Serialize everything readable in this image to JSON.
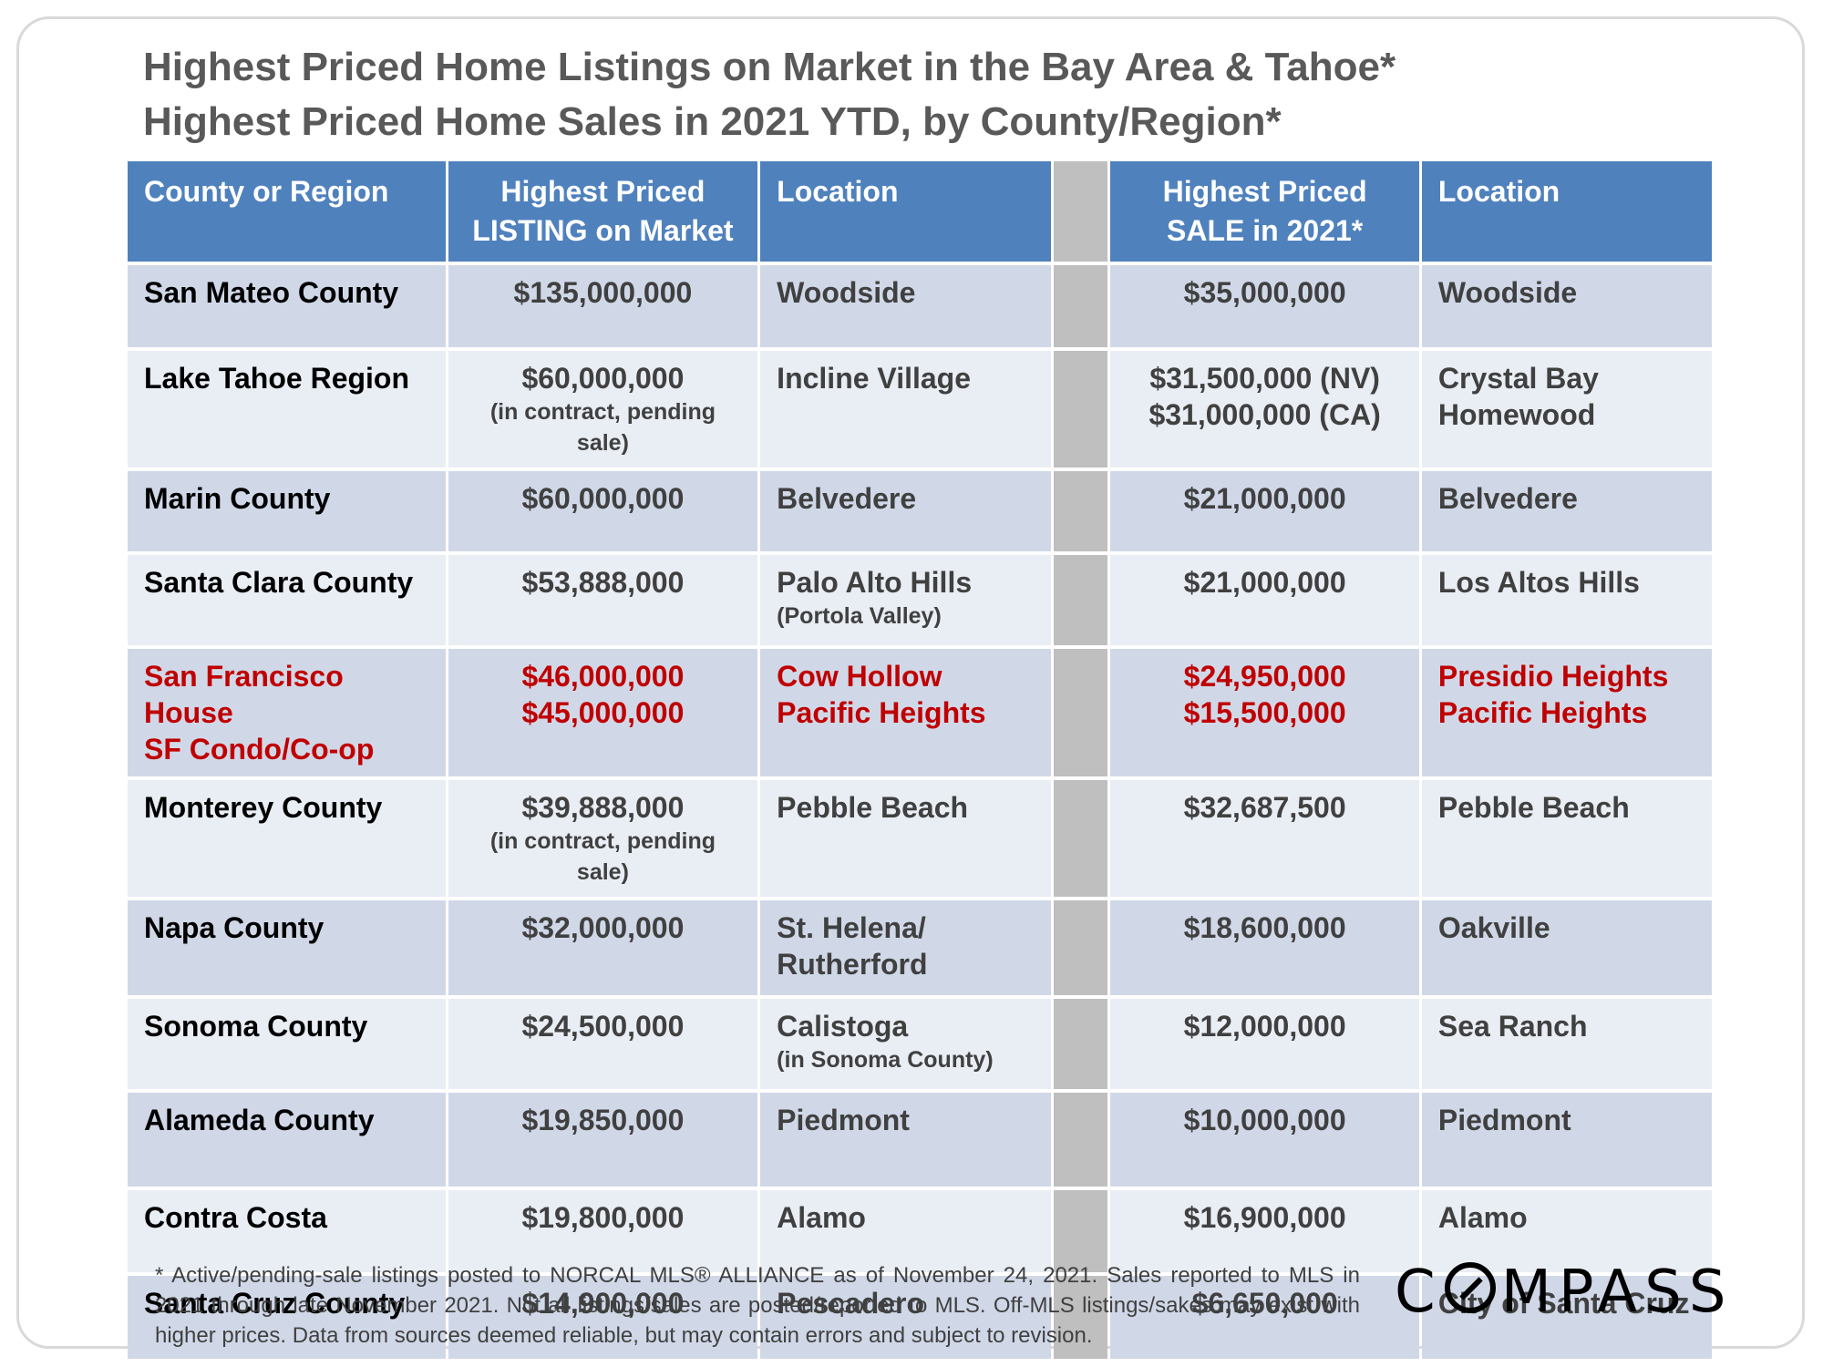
{
  "title": {
    "line1": "Highest Priced Home Listings on Market in the Bay Area & Tahoe*",
    "line2": "Highest Priced Home Sales in 2021 YTD, by County/Region*"
  },
  "chart_data": {
    "type": "table",
    "headers": {
      "region": "County or Region",
      "listing": [
        "Highest Priced",
        "LISTING on Market"
      ],
      "listing_location": "Location",
      "sale": [
        "Highest Priced",
        "SALE in 2021*"
      ],
      "sale_location": "Location"
    },
    "rows": [
      {
        "region": [
          "San Mateo County"
        ],
        "listing": [
          "$135,000,000"
        ],
        "listing_note": "",
        "listing_location": [
          "Woodside"
        ],
        "listing_location_note": "",
        "sale": [
          "$35,000,000"
        ],
        "sale_location": [
          "Woodside"
        ]
      },
      {
        "region": [
          "Lake Tahoe Region"
        ],
        "listing": [
          "$60,000,000"
        ],
        "listing_note": "(in contract, pending sale)",
        "listing_location": [
          "Incline Village"
        ],
        "listing_location_note": "",
        "sale": [
          "$31,500,000 (NV)",
          "$31,000,000 (CA)"
        ],
        "sale_location": [
          "Crystal Bay",
          "Homewood"
        ]
      },
      {
        "region": [
          "Marin County"
        ],
        "listing": [
          "$60,000,000"
        ],
        "listing_note": "",
        "listing_location": [
          "Belvedere"
        ],
        "listing_location_note": "",
        "sale": [
          "$21,000,000"
        ],
        "sale_location": [
          "Belvedere"
        ]
      },
      {
        "region": [
          "Santa Clara County"
        ],
        "listing": [
          "$53,888,000"
        ],
        "listing_note": "",
        "listing_location": [
          "Palo Alto Hills"
        ],
        "listing_location_note": "(Portola Valley)",
        "sale": [
          "$21,000,000"
        ],
        "sale_location": [
          "Los Altos Hills"
        ]
      },
      {
        "region": [
          "San Francisco House",
          "SF Condo/Co-op"
        ],
        "listing": [
          "$46,000,000",
          "$45,000,000"
        ],
        "listing_note": "",
        "listing_location": [
          "Cow Hollow",
          "Pacific Heights"
        ],
        "listing_location_note": "",
        "sale": [
          "$24,950,000",
          "$15,500,000"
        ],
        "sale_location": [
          "Presidio Heights",
          "Pacific Heights"
        ],
        "highlight": true
      },
      {
        "region": [
          "Monterey County"
        ],
        "listing": [
          "$39,888,000"
        ],
        "listing_note": "(in contract, pending sale)",
        "listing_location": [
          "Pebble Beach"
        ],
        "listing_location_note": "",
        "sale": [
          "$32,687,500"
        ],
        "sale_location": [
          "Pebble Beach"
        ]
      },
      {
        "region": [
          "Napa County"
        ],
        "listing": [
          "$32,000,000"
        ],
        "listing_note": "",
        "listing_location": [
          "St. Helena/",
          "Rutherford"
        ],
        "listing_location_note": "",
        "sale": [
          "$18,600,000"
        ],
        "sale_location": [
          "Oakville"
        ]
      },
      {
        "region": [
          "Sonoma County"
        ],
        "listing": [
          "$24,500,000"
        ],
        "listing_note": "",
        "listing_location": [
          "Calistoga"
        ],
        "listing_location_note": "(in Sonoma County)",
        "sale": [
          "$12,000,000"
        ],
        "sale_location": [
          "Sea Ranch"
        ]
      },
      {
        "region": [
          "Alameda County"
        ],
        "listing": [
          "$19,850,000"
        ],
        "listing_note": "",
        "listing_location": [
          "Piedmont"
        ],
        "listing_location_note": "",
        "sale": [
          "$10,000,000"
        ],
        "sale_location": [
          "Piedmont"
        ]
      },
      {
        "region": [
          "Contra Costa"
        ],
        "listing": [
          "$19,800,000"
        ],
        "listing_note": "",
        "listing_location": [
          "Alamo"
        ],
        "listing_location_note": "",
        "sale": [
          "$16,900,000"
        ],
        "sale_location": [
          "Alamo"
        ]
      },
      {
        "region": [
          "Santa Cruz County"
        ],
        "listing": [
          "$14,900,000"
        ],
        "listing_note": "",
        "listing_location": [
          "Pescadero"
        ],
        "listing_location_note": "",
        "sale": [
          "$6,650,000"
        ],
        "sale_location": [
          "City of Santa Cruz"
        ]
      }
    ]
  },
  "footnote": "* Active/pending-sale listings posted to NORCAL MLS® ALLIANCE as of November 24, 2021. Sales reported to MLS in 2021 through late November 2021. Not all listings/sales are posted/reported to MLS. Off-MLS listings/sakes may exist with higher prices. Data from sources deemed reliable, but may contain errors and subject to revision.",
  "logo": {
    "text": "COMPASS",
    "part1": "C",
    "part2": "MPASS"
  },
  "colors": {
    "header_bg": "#4f81bd",
    "row_dark": "#d0d8e8",
    "row_light": "#e9edf4",
    "highlight": "#c00000",
    "divider": "#bfbfbf"
  }
}
